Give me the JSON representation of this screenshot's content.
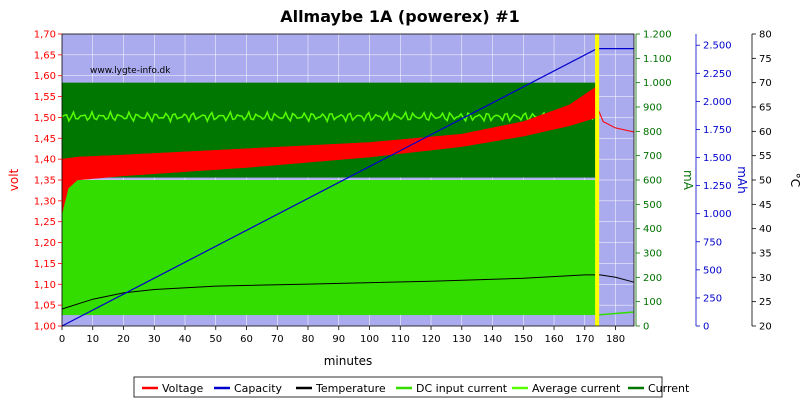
{
  "chart_data": {
    "type": "line",
    "title": "Allmaybe 1A (powerex) #1",
    "watermark": "www.lygte-info.dk",
    "xlabel": "minutes",
    "x_ticks": [
      0,
      10,
      20,
      30,
      40,
      50,
      60,
      70,
      80,
      90,
      100,
      110,
      120,
      130,
      140,
      150,
      160,
      170,
      180
    ],
    "xlim": [
      0,
      186
    ],
    "end_marker_x": 174,
    "axes": {
      "volt": {
        "label": "volt",
        "color": "#ff0000",
        "lim": [
          1.0,
          1.7
        ],
        "ticks": [
          "1,00",
          "1,05",
          "1,10",
          "1,15",
          "1,20",
          "1,25",
          "1,30",
          "1,35",
          "1,40",
          "1,45",
          "1,50",
          "1,55",
          "1,60",
          "1,65",
          "1,70"
        ]
      },
      "mA": {
        "label": "mA",
        "color": "#007000",
        "lim": [
          0,
          1200
        ],
        "ticks": [
          "0",
          "100",
          "200",
          "300",
          "400",
          "500",
          "600",
          "700",
          "800",
          "900",
          "1.000",
          "1.100",
          "1.200"
        ]
      },
      "mAh": {
        "label": "mAh",
        "color": "#0000cc",
        "lim": [
          0,
          2600
        ],
        "ticks": [
          "0",
          "250",
          "500",
          "750",
          "1.000",
          "1.250",
          "1.500",
          "1.750",
          "2.000",
          "2.250",
          "2.500"
        ]
      },
      "temp": {
        "label": "°C",
        "color": "#000000",
        "lim": [
          20,
          80
        ],
        "ticks": [
          "20",
          "25",
          "30",
          "35",
          "40",
          "45",
          "50",
          "55",
          "60",
          "65",
          "70",
          "75",
          "80"
        ]
      }
    },
    "series": [
      {
        "name": "Voltage",
        "axis": "volt",
        "color": "#ff0000",
        "upper": [
          [
            0,
            1.4
          ],
          [
            5,
            1.405
          ],
          [
            20,
            1.41
          ],
          [
            60,
            1.425
          ],
          [
            100,
            1.44
          ],
          [
            130,
            1.46
          ],
          [
            150,
            1.49
          ],
          [
            165,
            1.53
          ],
          [
            174,
            1.575
          ]
        ],
        "lower": [
          [
            0,
            1.27
          ],
          [
            2,
            1.33
          ],
          [
            5,
            1.35
          ],
          [
            20,
            1.36
          ],
          [
            60,
            1.38
          ],
          [
            100,
            1.405
          ],
          [
            130,
            1.43
          ],
          [
            150,
            1.455
          ],
          [
            165,
            1.48
          ],
          [
            174,
            1.5
          ]
        ],
        "tail": [
          [
            174,
            1.525
          ],
          [
            176,
            1.49
          ],
          [
            180,
            1.475
          ],
          [
            186,
            1.465
          ]
        ]
      },
      {
        "name": "Capacity",
        "axis": "mAh",
        "color": "#0000cc",
        "points": [
          [
            0,
            0
          ],
          [
            174,
            2470
          ],
          [
            186,
            2470
          ]
        ]
      },
      {
        "name": "Temperature",
        "axis": "temp",
        "color": "#000000",
        "points": [
          [
            0,
            23.5
          ],
          [
            10,
            25.5
          ],
          [
            20,
            26.8
          ],
          [
            30,
            27.5
          ],
          [
            50,
            28.2
          ],
          [
            80,
            28.6
          ],
          [
            120,
            29.2
          ],
          [
            150,
            29.8
          ],
          [
            170,
            30.5
          ],
          [
            175,
            30.5
          ],
          [
            180,
            30.0
          ],
          [
            186,
            29.0
          ]
        ]
      },
      {
        "name": "DC input current",
        "axis": "mA",
        "color": "#33dd00",
        "on_top": 600,
        "off_bottom": 45,
        "x_end": 174
      },
      {
        "name": "Average current",
        "axis": "mA",
        "color": "#55ff00",
        "level": 860,
        "ripple": 20,
        "x_end": 174
      },
      {
        "name": "Current",
        "axis": "mA",
        "color": "#007700",
        "top": 1000,
        "bottom": 610,
        "x_end": 174
      }
    ],
    "legend_position": "bottom",
    "grid": true
  }
}
